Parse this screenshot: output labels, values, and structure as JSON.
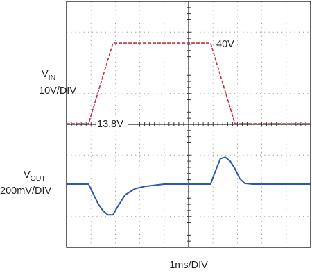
{
  "chart_data": {
    "type": "line",
    "title": "",
    "xlabel": "1ms/DIV",
    "grid": true,
    "x_divisions": 10,
    "y_divisions": 8,
    "series": [
      {
        "key": "vin",
        "name_main": "V",
        "name_sub": "IN",
        "scale": "10V/DIV",
        "color": "#c0323c",
        "dashed": true,
        "x_ms": [
          0.0,
          0.9,
          1.9,
          5.9,
          6.9,
          10.0
        ],
        "y_volts": [
          13.8,
          13.8,
          40.0,
          40.0,
          13.8,
          13.8
        ],
        "annotations": [
          "13.8V",
          "40V"
        ]
      },
      {
        "key": "vout",
        "name_main": "V",
        "name_sub": "OUT",
        "scale": "200mV/DIV",
        "color": "#2b59b0",
        "dashed": false,
        "x_ms": [
          0.0,
          0.9,
          1.1,
          1.3,
          1.5,
          1.7,
          1.9,
          2.1,
          2.4,
          2.8,
          3.2,
          4.0,
          5.0,
          5.9,
          6.1,
          6.3,
          6.5,
          6.7,
          6.9,
          7.1,
          7.3,
          7.6,
          8.0,
          9.0,
          10.0
        ],
        "y_mV": [
          0,
          0,
          -65,
          -130,
          -175,
          -200,
          -200,
          -145,
          -70,
          -30,
          -15,
          0,
          0,
          0,
          85,
          165,
          175,
          150,
          100,
          35,
          5,
          0,
          0,
          0,
          0
        ]
      }
    ]
  }
}
